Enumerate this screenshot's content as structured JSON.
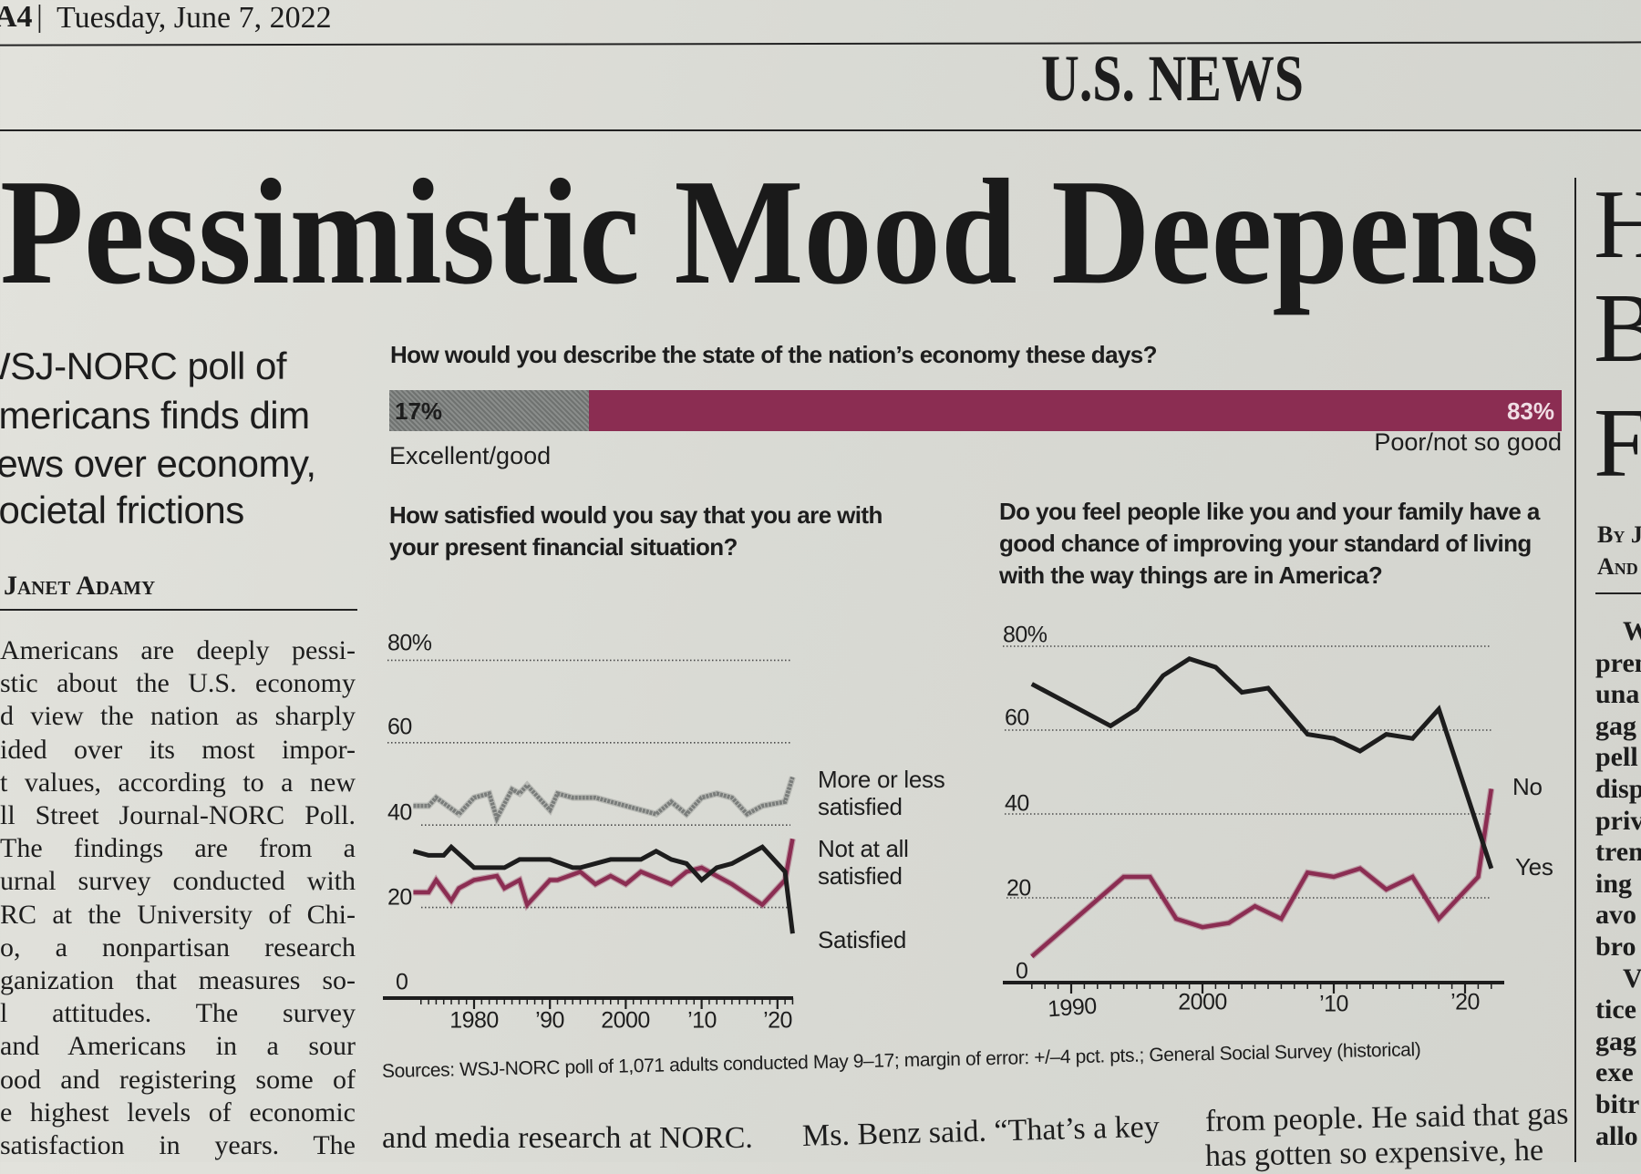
{
  "masthead": {
    "page": "A4",
    "separator": "|",
    "date": "Tuesday, June 7, 2022",
    "section": "U.S. NEWS"
  },
  "article": {
    "headline": "Pessimistic Mood Deepens",
    "deck": [
      "WSJ-NORC poll of",
      "Americans finds dim",
      "views over economy,",
      "societal frictions"
    ],
    "byline": "Janet Adamy",
    "body_lines": [
      "Americans are deeply pessi-",
      "stic about the U.S. economy",
      "d view the nation as sharply",
      "ided over its most impor-",
      "t values, according to a new",
      "ll Street Journal-NORC Poll.",
      "The findings are from a",
      "urnal survey conducted with",
      "RC at the University of Chi-",
      "o, a nonpartisan research",
      "ganization that measures so-",
      "l attitudes. The survey",
      "and Americans in a sour",
      "ood and registering some of",
      "e highest levels of economic",
      "satisfaction in years. The"
    ],
    "bottom_columns": [
      "and media research at NORC.",
      "Ms. Benz said. “That’s a key",
      "from people. He said that gas",
      "has gotten so expensive, he"
    ]
  },
  "adjacent_article": {
    "headline_letters": [
      "H",
      "B",
      "F"
    ],
    "byline_lines": [
      "By J",
      "And"
    ],
    "body_fragments": [
      "W",
      "pren",
      "una",
      "gag",
      "pell",
      "disp",
      "priv",
      "tren",
      "ing",
      "avo",
      "bro",
      "V",
      "tice",
      "gag",
      "exe",
      "bitr",
      "allo"
    ]
  },
  "graphic": {
    "sources": "Sources: WSJ-NORC poll of 1,071 adults conducted May 9–17; margin of error: +/–4 pct. pts.; General Social Survey (historical)"
  },
  "colors": {
    "ink": "#1d1d1d",
    "accent_pink": "#8b2d52",
    "neutral_gray": "#7a7d7b",
    "paper": "#dcdcd6"
  },
  "chart_data": [
    {
      "type": "bar",
      "title": "How would you describe the state of the nation’s economy these days?",
      "categories": [
        "Excellent/good",
        "Poor/not so good"
      ],
      "values": [
        17,
        83
      ],
      "value_labels": [
        "17%",
        "83%"
      ],
      "colors": [
        "#7a7d7b",
        "#8b2d52"
      ],
      "orientation": "horizontal-stacked"
    },
    {
      "type": "line",
      "title": "How satisfied would you say that you are with your present financial situation?",
      "ylim": [
        0,
        80
      ],
      "xlim": [
        1972,
        2022
      ],
      "y_ticks": [
        "0",
        "20",
        "40",
        "60",
        "80%"
      ],
      "x_ticks": [
        "1980",
        "’90",
        "2000",
        "’10",
        "’20"
      ],
      "grid": true,
      "legend_placement": "right-inline",
      "series": [
        {
          "name": "More or less satisfied",
          "color": "#7a7d7b",
          "points": [
            [
              1972,
              44
            ],
            [
              1974,
              44
            ],
            [
              1975,
              46
            ],
            [
              1978,
              42
            ],
            [
              1980,
              46
            ],
            [
              1982,
              47
            ],
            [
              1983,
              41
            ],
            [
              1985,
              48
            ],
            [
              1986,
              47
            ],
            [
              1987,
              49
            ],
            [
              1989,
              45
            ],
            [
              1990,
              43
            ],
            [
              1991,
              47
            ],
            [
              1993,
              46
            ],
            [
              1996,
              46
            ],
            [
              2000,
              44
            ],
            [
              2004,
              42
            ],
            [
              2006,
              45
            ],
            [
              2008,
              42
            ],
            [
              2010,
              46
            ],
            [
              2012,
              47
            ],
            [
              2014,
              46
            ],
            [
              2016,
              42
            ],
            [
              2018,
              44
            ],
            [
              2021,
              45
            ],
            [
              2022,
              51
            ]
          ]
        },
        {
          "name": "Not at all satisfied",
          "color": "#8b2d52",
          "points": [
            [
              1972,
              23
            ],
            [
              1974,
              23
            ],
            [
              1975,
              26
            ],
            [
              1977,
              21
            ],
            [
              1978,
              24
            ],
            [
              1980,
              26
            ],
            [
              1983,
              27
            ],
            [
              1984,
              24
            ],
            [
              1986,
              26
            ],
            [
              1987,
              20
            ],
            [
              1990,
              26
            ],
            [
              1991,
              26
            ],
            [
              1994,
              28
            ],
            [
              1996,
              25
            ],
            [
              1998,
              27
            ],
            [
              2000,
              25
            ],
            [
              2002,
              28
            ],
            [
              2006,
              25
            ],
            [
              2008,
              28
            ],
            [
              2010,
              29
            ],
            [
              2012,
              27
            ],
            [
              2014,
              25
            ],
            [
              2018,
              20
            ],
            [
              2021,
              26
            ],
            [
              2022,
              36
            ]
          ]
        },
        {
          "name": "Satisfied",
          "color": "#1d1d1d",
          "points": [
            [
              1972,
              33
            ],
            [
              1974,
              32
            ],
            [
              1976,
              32
            ],
            [
              1977,
              34
            ],
            [
              1980,
              29
            ],
            [
              1983,
              29
            ],
            [
              1984,
              29
            ],
            [
              1986,
              31
            ],
            [
              1988,
              31
            ],
            [
              1990,
              31
            ],
            [
              1993,
              29
            ],
            [
              1994,
              29
            ],
            [
              1998,
              31
            ],
            [
              2002,
              31
            ],
            [
              2004,
              33
            ],
            [
              2006,
              31
            ],
            [
              2008,
              30
            ],
            [
              2010,
              26
            ],
            [
              2012,
              29
            ],
            [
              2014,
              30
            ],
            [
              2018,
              34
            ],
            [
              2021,
              28
            ],
            [
              2022,
              13
            ]
          ]
        }
      ]
    },
    {
      "type": "line",
      "title": "Do you feel people like you and your family have a good chance of improving your standard of living with the way things are in America?",
      "ylim": [
        0,
        80
      ],
      "xlim": [
        1987,
        2022
      ],
      "y_ticks": [
        "0",
        "20",
        "40",
        "60",
        "80%"
      ],
      "x_ticks": [
        "1990",
        "2000",
        "’10",
        "’20"
      ],
      "grid": true,
      "legend_placement": "right-inline",
      "series": [
        {
          "name": "No",
          "color": "#8b2d52",
          "points": [
            [
              1987,
              6
            ],
            [
              1994,
              25
            ],
            [
              1996,
              25
            ],
            [
              1998,
              15
            ],
            [
              2000,
              13
            ],
            [
              2002,
              14
            ],
            [
              2004,
              18
            ],
            [
              2006,
              15
            ],
            [
              2008,
              26
            ],
            [
              2010,
              25
            ],
            [
              2012,
              27
            ],
            [
              2014,
              22
            ],
            [
              2016,
              25
            ],
            [
              2018,
              15
            ],
            [
              2021,
              25
            ],
            [
              2022,
              46
            ]
          ]
        },
        {
          "name": "Yes",
          "color": "#1d1d1d",
          "points": [
            [
              1987,
              71
            ],
            [
              1993,
              61
            ],
            [
              1995,
              65
            ],
            [
              1997,
              73
            ],
            [
              1999,
              77
            ],
            [
              2001,
              75
            ],
            [
              2003,
              69
            ],
            [
              2005,
              70
            ],
            [
              2008,
              59
            ],
            [
              2010,
              58
            ],
            [
              2012,
              55
            ],
            [
              2014,
              59
            ],
            [
              2016,
              58
            ],
            [
              2018,
              65
            ],
            [
              2022,
              27
            ]
          ]
        }
      ]
    }
  ]
}
